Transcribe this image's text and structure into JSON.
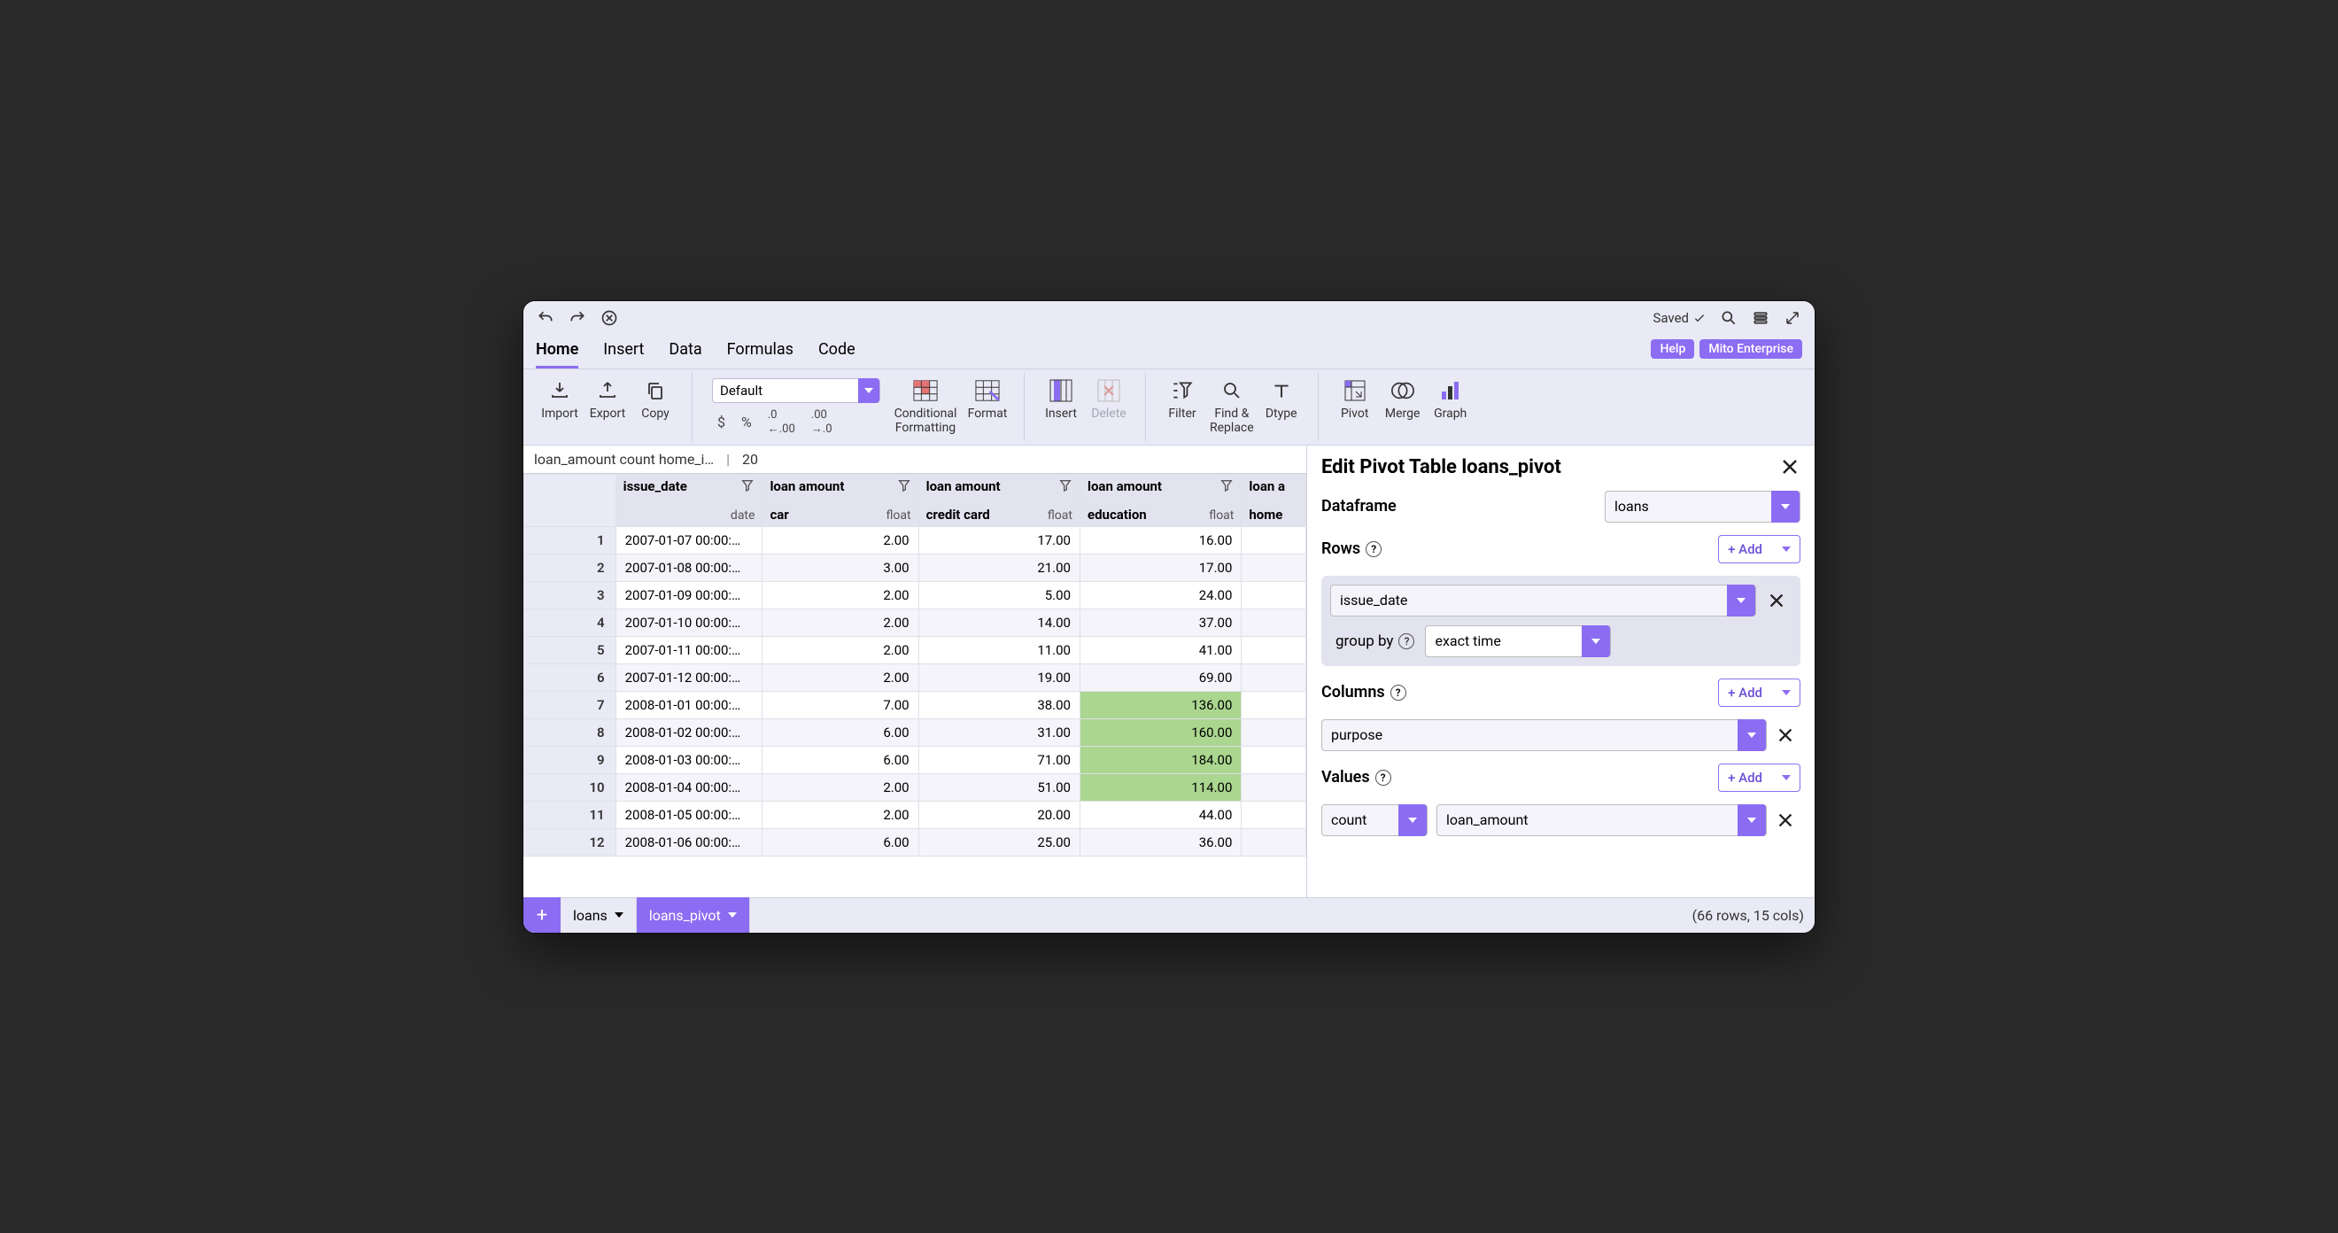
{
  "topbar": {
    "saved_label": "Saved"
  },
  "menu": {
    "tabs": [
      "Home",
      "Insert",
      "Data",
      "Formulas",
      "Code"
    ],
    "active_index": 0,
    "pills": [
      "Help",
      "Mito Enterprise"
    ]
  },
  "ribbon": {
    "import": "Import",
    "export": "Export",
    "copy": "Copy",
    "format_select": "Default",
    "cond_format": "Conditional\nFormatting",
    "format": "Format",
    "insert": "Insert",
    "delete": "Delete",
    "filter": "Filter",
    "find_replace": "Find &\nReplace",
    "dtype": "Dtype",
    "pivot": "Pivot",
    "merge": "Merge",
    "graph": "Graph"
  },
  "cellbar": {
    "ref": "loan_amount count home_i…",
    "value": "20"
  },
  "columns": [
    {
      "top": "issue_date",
      "sub": "",
      "type": "date"
    },
    {
      "top": "loan amount",
      "sub": "car",
      "type": "float"
    },
    {
      "top": "loan amount",
      "sub": "credit card",
      "type": "float"
    },
    {
      "top": "loan amount",
      "sub": "education",
      "type": "float"
    },
    {
      "top": "loan a",
      "sub": "home",
      "type": ""
    }
  ],
  "rows": [
    {
      "n": "1",
      "date": "2007-01-07 00:00:…",
      "car": "2.00",
      "cc": "17.00",
      "edu": "16.00",
      "hl": false
    },
    {
      "n": "2",
      "date": "2007-01-08 00:00:…",
      "car": "3.00",
      "cc": "21.00",
      "edu": "17.00",
      "hl": false
    },
    {
      "n": "3",
      "date": "2007-01-09 00:00:…",
      "car": "2.00",
      "cc": "5.00",
      "edu": "24.00",
      "hl": false
    },
    {
      "n": "4",
      "date": "2007-01-10 00:00:…",
      "car": "2.00",
      "cc": "14.00",
      "edu": "37.00",
      "hl": false
    },
    {
      "n": "5",
      "date": "2007-01-11 00:00:…",
      "car": "2.00",
      "cc": "11.00",
      "edu": "41.00",
      "hl": false
    },
    {
      "n": "6",
      "date": "2007-01-12 00:00:…",
      "car": "2.00",
      "cc": "19.00",
      "edu": "69.00",
      "hl": false
    },
    {
      "n": "7",
      "date": "2008-01-01 00:00:…",
      "car": "7.00",
      "cc": "38.00",
      "edu": "136.00",
      "hl": true
    },
    {
      "n": "8",
      "date": "2008-01-02 00:00:…",
      "car": "6.00",
      "cc": "31.00",
      "edu": "160.00",
      "hl": true
    },
    {
      "n": "9",
      "date": "2008-01-03 00:00:…",
      "car": "6.00",
      "cc": "71.00",
      "edu": "184.00",
      "hl": true
    },
    {
      "n": "10",
      "date": "2008-01-04 00:00:…",
      "car": "2.00",
      "cc": "51.00",
      "edu": "114.00",
      "hl": true
    },
    {
      "n": "11",
      "date": "2008-01-05 00:00:…",
      "car": "2.00",
      "cc": "20.00",
      "edu": "44.00",
      "hl": false
    },
    {
      "n": "12",
      "date": "2008-01-06 00:00:…",
      "car": "6.00",
      "cc": "25.00",
      "edu": "36.00",
      "hl": false
    }
  ],
  "panel": {
    "title": "Edit Pivot Table loans_pivot",
    "dataframe_label": "Dataframe",
    "dataframe_value": "loans",
    "rows_label": "Rows",
    "rows_value": "issue_date",
    "group_by_label": "group by",
    "group_by_value": "exact time",
    "columns_label": "Columns",
    "columns_value": "purpose",
    "values_label": "Values",
    "agg_value": "count",
    "field_value": "loan_amount",
    "add_label": "+ Add"
  },
  "sheets": {
    "tabs": [
      {
        "name": "loans",
        "active": false
      },
      {
        "name": "loans_pivot",
        "active": true
      }
    ],
    "status": "(66 rows, 15 cols)"
  },
  "colors": {
    "accent": "#8c6cf2",
    "highlight": "#aad68f",
    "header_bg": "#e3e3f0",
    "app_bg": "#e9eaf5"
  }
}
